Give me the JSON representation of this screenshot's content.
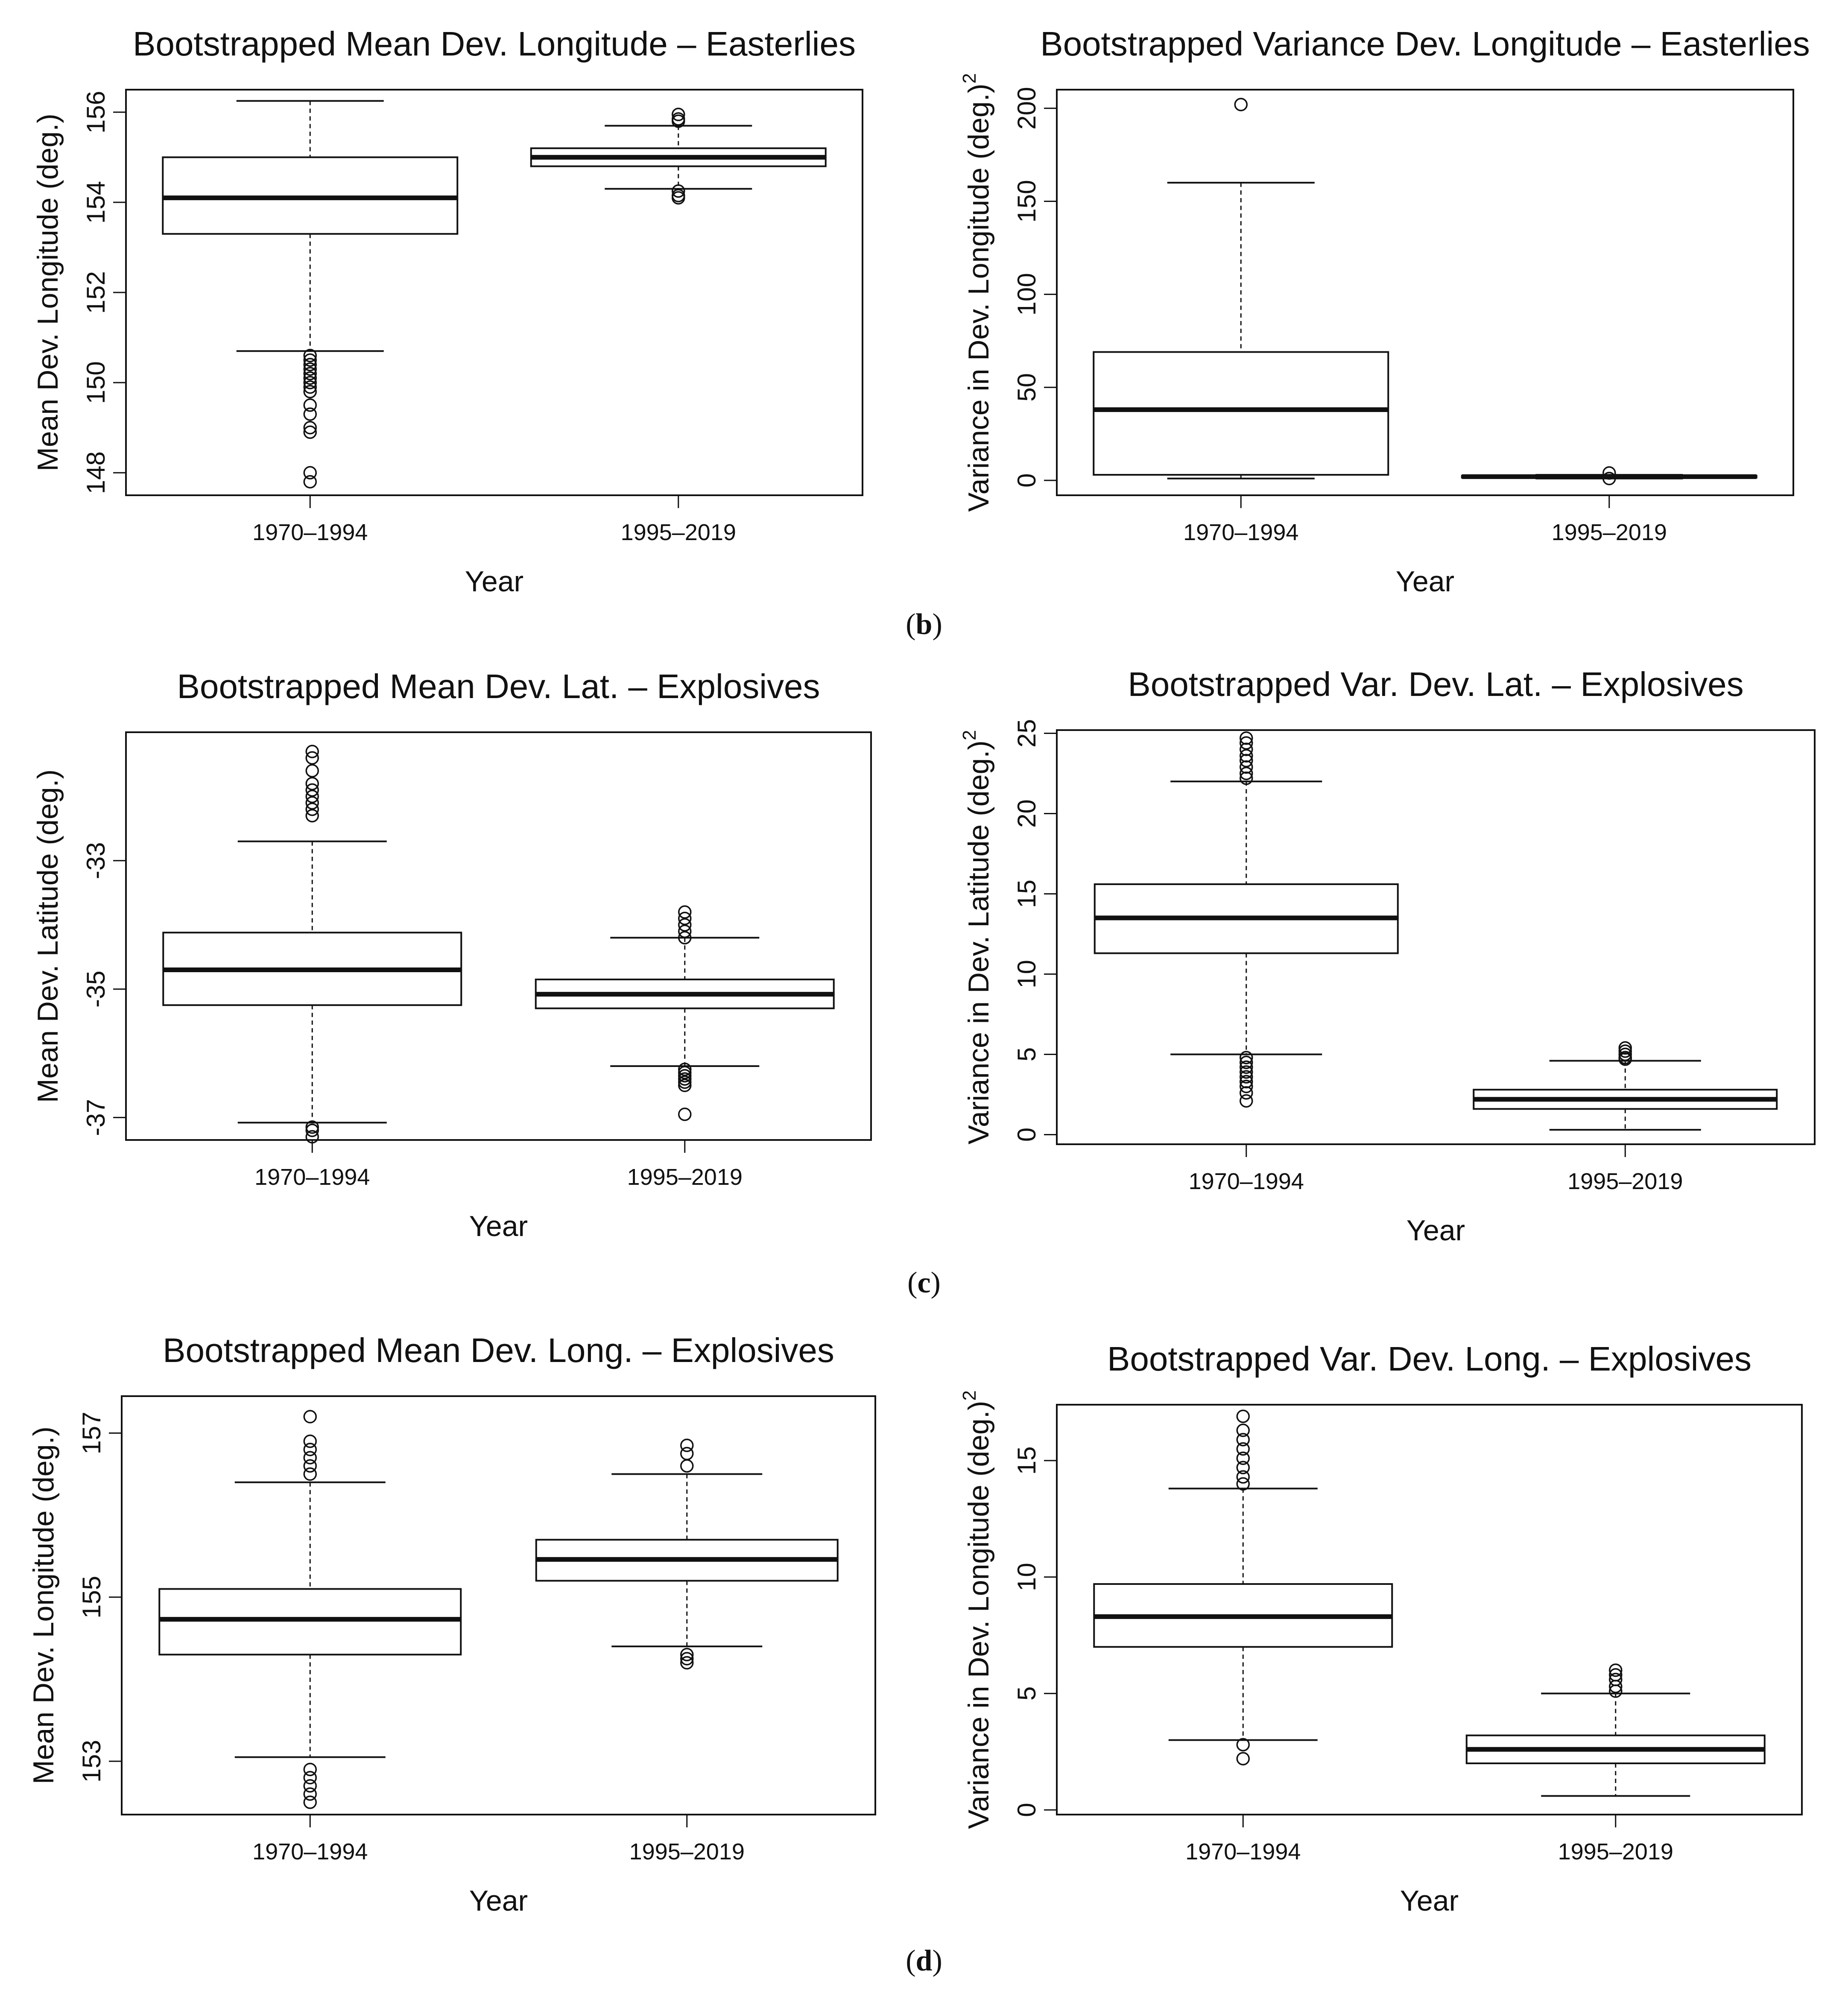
{
  "subfigure_labels": [
    "(b)",
    "(c)",
    "(d)"
  ],
  "chart_data": [
    {
      "type": "box",
      "title": "Bootstrapped Mean Dev. Longitude – Easterlies",
      "xlabel": "Year",
      "ylabel": "Mean Dev. Longitude (deg.)",
      "ylim": [
        147.5,
        156.5
      ],
      "yticks": [
        148,
        150,
        152,
        154,
        156
      ],
      "categories": [
        "1970–1994",
        "1995–2019"
      ],
      "boxes": [
        {
          "lower_whisker": 150.7,
          "q1": 153.3,
          "median": 154.1,
          "q3": 155.0,
          "upper_whisker": 156.25,
          "outliers": [
            150.6,
            150.5,
            150.4,
            150.3,
            150.2,
            150.1,
            150.0,
            149.9,
            149.8,
            149.5,
            149.3,
            149.0,
            148.9,
            148.0,
            147.8
          ]
        },
        {
          "lower_whisker": 154.3,
          "q1": 154.8,
          "median": 155.0,
          "q3": 155.2,
          "upper_whisker": 155.7,
          "outliers": [
            155.95,
            155.85,
            155.8,
            154.25,
            154.15,
            154.1
          ]
        }
      ]
    },
    {
      "type": "box",
      "title": "Bootstrapped Variance Dev. Longitude – Easterlies",
      "xlabel": "Year",
      "ylabel": "Variance in Dev. Longitude (deg.)",
      "ylabel_superscript": "2",
      "ylim": [
        -8,
        210
      ],
      "yticks": [
        0,
        50,
        100,
        150,
        200
      ],
      "categories": [
        "1970–1994",
        "1995–2019"
      ],
      "boxes": [
        {
          "lower_whisker": 1,
          "q1": 3,
          "median": 38,
          "q3": 69,
          "upper_whisker": 160,
          "outliers": [
            202
          ]
        },
        {
          "lower_whisker": 1,
          "q1": 1.5,
          "median": 2,
          "q3": 2.5,
          "upper_whisker": 3,
          "outliers": [
            4,
            1
          ]
        }
      ]
    },
    {
      "type": "box",
      "title": "Bootstrapped Mean Dev. Lat. – Explosives",
      "xlabel": "Year",
      "ylabel": "Mean Dev. Latitude (deg.)",
      "ylim": [
        -37.35,
        -31.0
      ],
      "yticks": [
        -37,
        -35,
        -33
      ],
      "categories": [
        "1970–1994",
        "1995–2019"
      ],
      "boxes": [
        {
          "lower_whisker": -37.08,
          "q1": -35.25,
          "median": -34.7,
          "q3": -34.12,
          "upper_whisker": -32.7,
          "outliers": [
            -31.3,
            -31.4,
            -31.6,
            -31.8,
            -31.9,
            -32.0,
            -32.1,
            -32.2,
            -32.3,
            -37.15,
            -37.2,
            -37.3
          ]
        },
        {
          "lower_whisker": -36.2,
          "q1": -35.3,
          "median": -35.08,
          "q3": -34.85,
          "upper_whisker": -34.2,
          "outliers": [
            -33.8,
            -33.9,
            -34.0,
            -34.1,
            -34.2,
            -36.25,
            -36.3,
            -36.35,
            -36.4,
            -36.45,
            -36.5,
            -36.95
          ]
        }
      ]
    },
    {
      "type": "box",
      "title": "Bootstrapped Var. Dev. Lat. – Explosives",
      "xlabel": "Year",
      "ylabel": "Variance in Dev. Latitude (deg.)",
      "ylabel_superscript": "2",
      "ylim": [
        -0.6,
        25.2
      ],
      "yticks": [
        0,
        5,
        10,
        15,
        20,
        25
      ],
      "categories": [
        "1970–1994",
        "1995–2019"
      ],
      "boxes": [
        {
          "lower_whisker": 5.0,
          "q1": 11.3,
          "median": 13.5,
          "q3": 15.6,
          "upper_whisker": 22.0,
          "outliers": [
            24.7,
            24.4,
            24.0,
            23.6,
            23.3,
            22.9,
            22.5,
            22.2,
            4.8,
            4.5,
            4.2,
            3.9,
            3.6,
            3.3,
            3.0,
            2.6,
            2.1
          ]
        },
        {
          "lower_whisker": 0.3,
          "q1": 1.6,
          "median": 2.2,
          "q3": 2.8,
          "upper_whisker": 4.6,
          "outliers": [
            5.4,
            5.2,
            5.0,
            4.8,
            4.7
          ]
        }
      ]
    },
    {
      "type": "box",
      "title": "Bootstrapped Mean Dev. Long. – Explosives",
      "xlabel": "Year",
      "ylabel": "Mean Dev. Longitude (deg.)",
      "ylim": [
        152.35,
        157.45
      ],
      "yticks": [
        153,
        155,
        157
      ],
      "categories": [
        "1970–1994",
        "1995–2019"
      ],
      "boxes": [
        {
          "lower_whisker": 153.05,
          "q1": 154.3,
          "median": 154.73,
          "q3": 155.1,
          "upper_whisker": 156.4,
          "outliers": [
            157.2,
            156.9,
            156.8,
            156.7,
            156.6,
            156.5,
            152.9,
            152.8,
            152.7,
            152.6,
            152.5
          ]
        },
        {
          "lower_whisker": 154.4,
          "q1": 155.2,
          "median": 155.46,
          "q3": 155.7,
          "upper_whisker": 156.5,
          "outliers": [
            156.85,
            156.75,
            156.6,
            154.3,
            154.25,
            154.2
          ]
        }
      ]
    },
    {
      "type": "box",
      "title": "Bootstrapped Var. Dev. Long. – Explosives",
      "xlabel": "Year",
      "ylabel": "Variance in Dev. Longitude (deg.)",
      "ylabel_superscript": "2",
      "ylim": [
        -0.2,
        17.4
      ],
      "yticks": [
        0,
        5,
        10,
        15
      ],
      "categories": [
        "1970–1994",
        "1995–2019"
      ],
      "boxes": [
        {
          "lower_whisker": 3.0,
          "q1": 7.0,
          "median": 8.3,
          "q3": 9.7,
          "upper_whisker": 13.8,
          "outliers": [
            16.9,
            16.3,
            15.9,
            15.5,
            15.1,
            14.7,
            14.3,
            14.0,
            2.8,
            2.2
          ]
        },
        {
          "lower_whisker": 0.6,
          "q1": 2.0,
          "median": 2.6,
          "q3": 3.2,
          "upper_whisker": 5.0,
          "outliers": [
            6.0,
            5.8,
            5.6,
            5.3,
            5.1
          ]
        }
      ]
    }
  ]
}
